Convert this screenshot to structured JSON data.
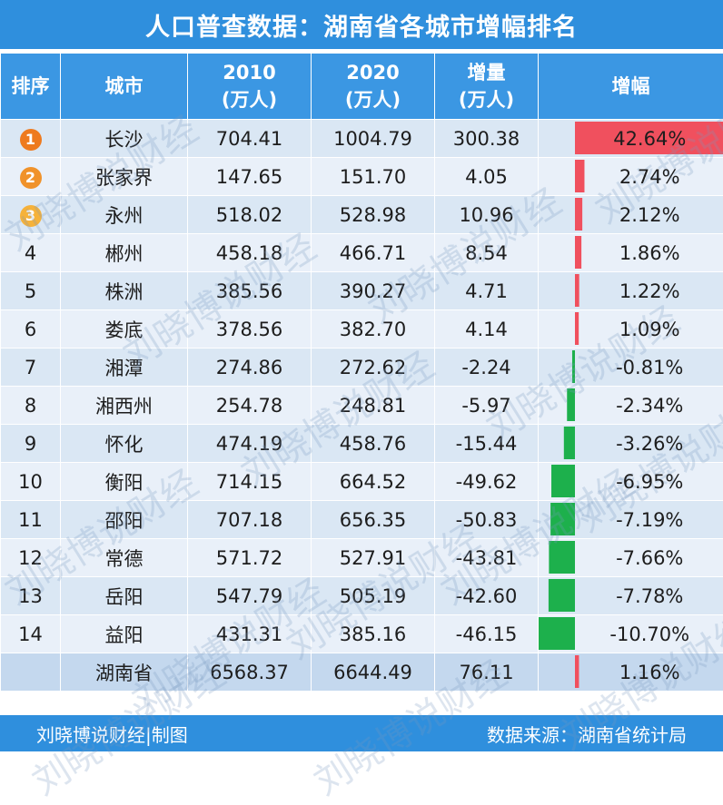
{
  "title": "人口普查数据：湖南省各城市增幅排名",
  "headers": {
    "rank": "排序",
    "city": "城市",
    "y2010": "2010\n(万人)",
    "y2020": "2020\n(万人)",
    "increase": "增量\n(万人)",
    "growth": "增幅"
  },
  "colors": {
    "positive": "#f0505e",
    "negative": "#1db04c",
    "header": "#3b97e3",
    "title": "#2f8fdd"
  },
  "watermark": "刘晓博说财经",
  "footer": {
    "left": "刘晓博说财经|制图",
    "right": "数据来源：湖南省统计局"
  },
  "rows": [
    {
      "rank": "1",
      "city": "长沙",
      "y2010": "704.41",
      "y2020": "1004.79",
      "increase": "300.38",
      "growth": "42.64%"
    },
    {
      "rank": "2",
      "city": "张家界",
      "y2010": "147.65",
      "y2020": "151.70",
      "increase": "4.05",
      "growth": "2.74%"
    },
    {
      "rank": "3",
      "city": "永州",
      "y2010": "518.02",
      "y2020": "528.98",
      "increase": "10.96",
      "growth": "2.12%"
    },
    {
      "rank": "4",
      "city": "郴州",
      "y2010": "458.18",
      "y2020": "466.71",
      "increase": "8.54",
      "growth": "1.86%"
    },
    {
      "rank": "5",
      "city": "株洲",
      "y2010": "385.56",
      "y2020": "390.27",
      "increase": "4.71",
      "growth": "1.22%"
    },
    {
      "rank": "6",
      "city": "娄底",
      "y2010": "378.56",
      "y2020": "382.70",
      "increase": "4.14",
      "growth": "1.09%"
    },
    {
      "rank": "7",
      "city": "湘潭",
      "y2010": "274.86",
      "y2020": "272.62",
      "increase": "-2.24",
      "growth": "-0.81%"
    },
    {
      "rank": "8",
      "city": "湘西州",
      "y2010": "254.78",
      "y2020": "248.81",
      "increase": "-5.97",
      "growth": "-2.34%"
    },
    {
      "rank": "9",
      "city": "怀化",
      "y2010": "474.19",
      "y2020": "458.76",
      "increase": "-15.44",
      "growth": "-3.26%"
    },
    {
      "rank": "10",
      "city": "衡阳",
      "y2010": "714.15",
      "y2020": "664.52",
      "increase": "-49.62",
      "growth": "-6.95%"
    },
    {
      "rank": "11",
      "city": "邵阳",
      "y2010": "707.18",
      "y2020": "656.35",
      "increase": "-50.83",
      "growth": "-7.19%"
    },
    {
      "rank": "12",
      "city": "常德",
      "y2010": "571.72",
      "y2020": "527.91",
      "increase": "-43.81",
      "growth": "-7.66%"
    },
    {
      "rank": "13",
      "city": "岳阳",
      "y2010": "547.79",
      "y2020": "505.19",
      "increase": "-42.60",
      "growth": "-7.78%"
    },
    {
      "rank": "14",
      "city": "益阳",
      "y2010": "431.31",
      "y2020": "385.16",
      "increase": "-46.15",
      "growth": "-10.70%"
    }
  ],
  "total": {
    "rank": "",
    "city": "湖南省",
    "y2010": "6568.37",
    "y2020": "6644.49",
    "increase": "76.11",
    "growth": "1.16%"
  },
  "chart_data": {
    "type": "table",
    "categories": [
      "长沙",
      "张家界",
      "永州",
      "郴州",
      "株洲",
      "娄底",
      "湘潭",
      "湘西州",
      "怀化",
      "衡阳",
      "邵阳",
      "常德",
      "岳阳",
      "益阳",
      "湖南省"
    ],
    "series": [
      {
        "name": "增幅",
        "values": [
          42.64,
          2.74,
          2.12,
          1.86,
          1.22,
          1.09,
          -0.81,
          -2.34,
          -3.26,
          -6.95,
          -7.19,
          -7.66,
          -7.78,
          -10.7,
          1.16
        ]
      }
    ]
  }
}
